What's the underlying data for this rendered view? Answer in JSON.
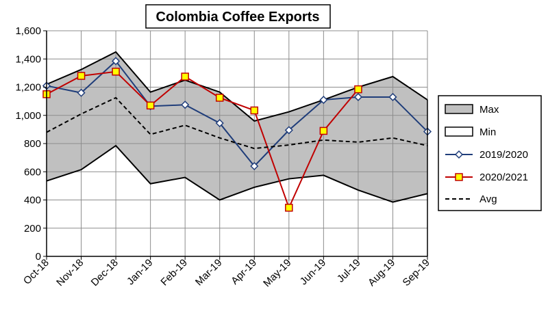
{
  "chart_data": {
    "type": "line",
    "title": "Colombia Coffee Exports",
    "xlabel": "",
    "ylabel": "",
    "categories": [
      "Oct-18",
      "Nov-18",
      "Dec-18",
      "Jan-19",
      "Feb-19",
      "Mar-19",
      "Apr-19",
      "May-19",
      "Jun-19",
      "Jul-19",
      "Aug-19",
      "Sep-19"
    ],
    "ylim": [
      0,
      1600
    ],
    "yticks": [
      0,
      200,
      400,
      600,
      800,
      1000,
      1200,
      1400,
      1600
    ],
    "ytick_labels": [
      "0",
      "200",
      "400",
      "600",
      "800",
      "1,000",
      "1,200",
      "1,400",
      "1,600"
    ],
    "grid": true,
    "legend_position": "right",
    "series": [
      {
        "name": "Max",
        "kind": "area",
        "fill": "#c0c0c0",
        "stroke": "#000000",
        "values": [
          1220,
          1325,
          1450,
          1165,
          1250,
          1165,
          960,
          1025,
          1110,
          1200,
          1275,
          1110
        ]
      },
      {
        "name": "Min",
        "kind": "area",
        "fill": "#ffffff",
        "stroke": "#000000",
        "values": [
          535,
          615,
          785,
          515,
          560,
          400,
          490,
          550,
          575,
          470,
          385,
          445
        ]
      },
      {
        "name": "2019/2020",
        "kind": "line",
        "color": "#1f3d7a",
        "marker": "diamond",
        "values": [
          1210,
          1160,
          1385,
          1065,
          1075,
          945,
          640,
          895,
          1110,
          1130,
          1130,
          885
        ]
      },
      {
        "name": "2020/2021",
        "kind": "line",
        "color": "#c00000",
        "marker": "square",
        "marker_fill": "#ffff00",
        "values": [
          1150,
          1280,
          1310,
          1070,
          1275,
          1125,
          1035,
          345,
          890,
          1185,
          null,
          null
        ]
      },
      {
        "name": "Avg",
        "kind": "dashed",
        "color": "#000000",
        "values": [
          880,
          1010,
          1125,
          865,
          930,
          840,
          765,
          790,
          825,
          810,
          840,
          785
        ]
      }
    ]
  }
}
